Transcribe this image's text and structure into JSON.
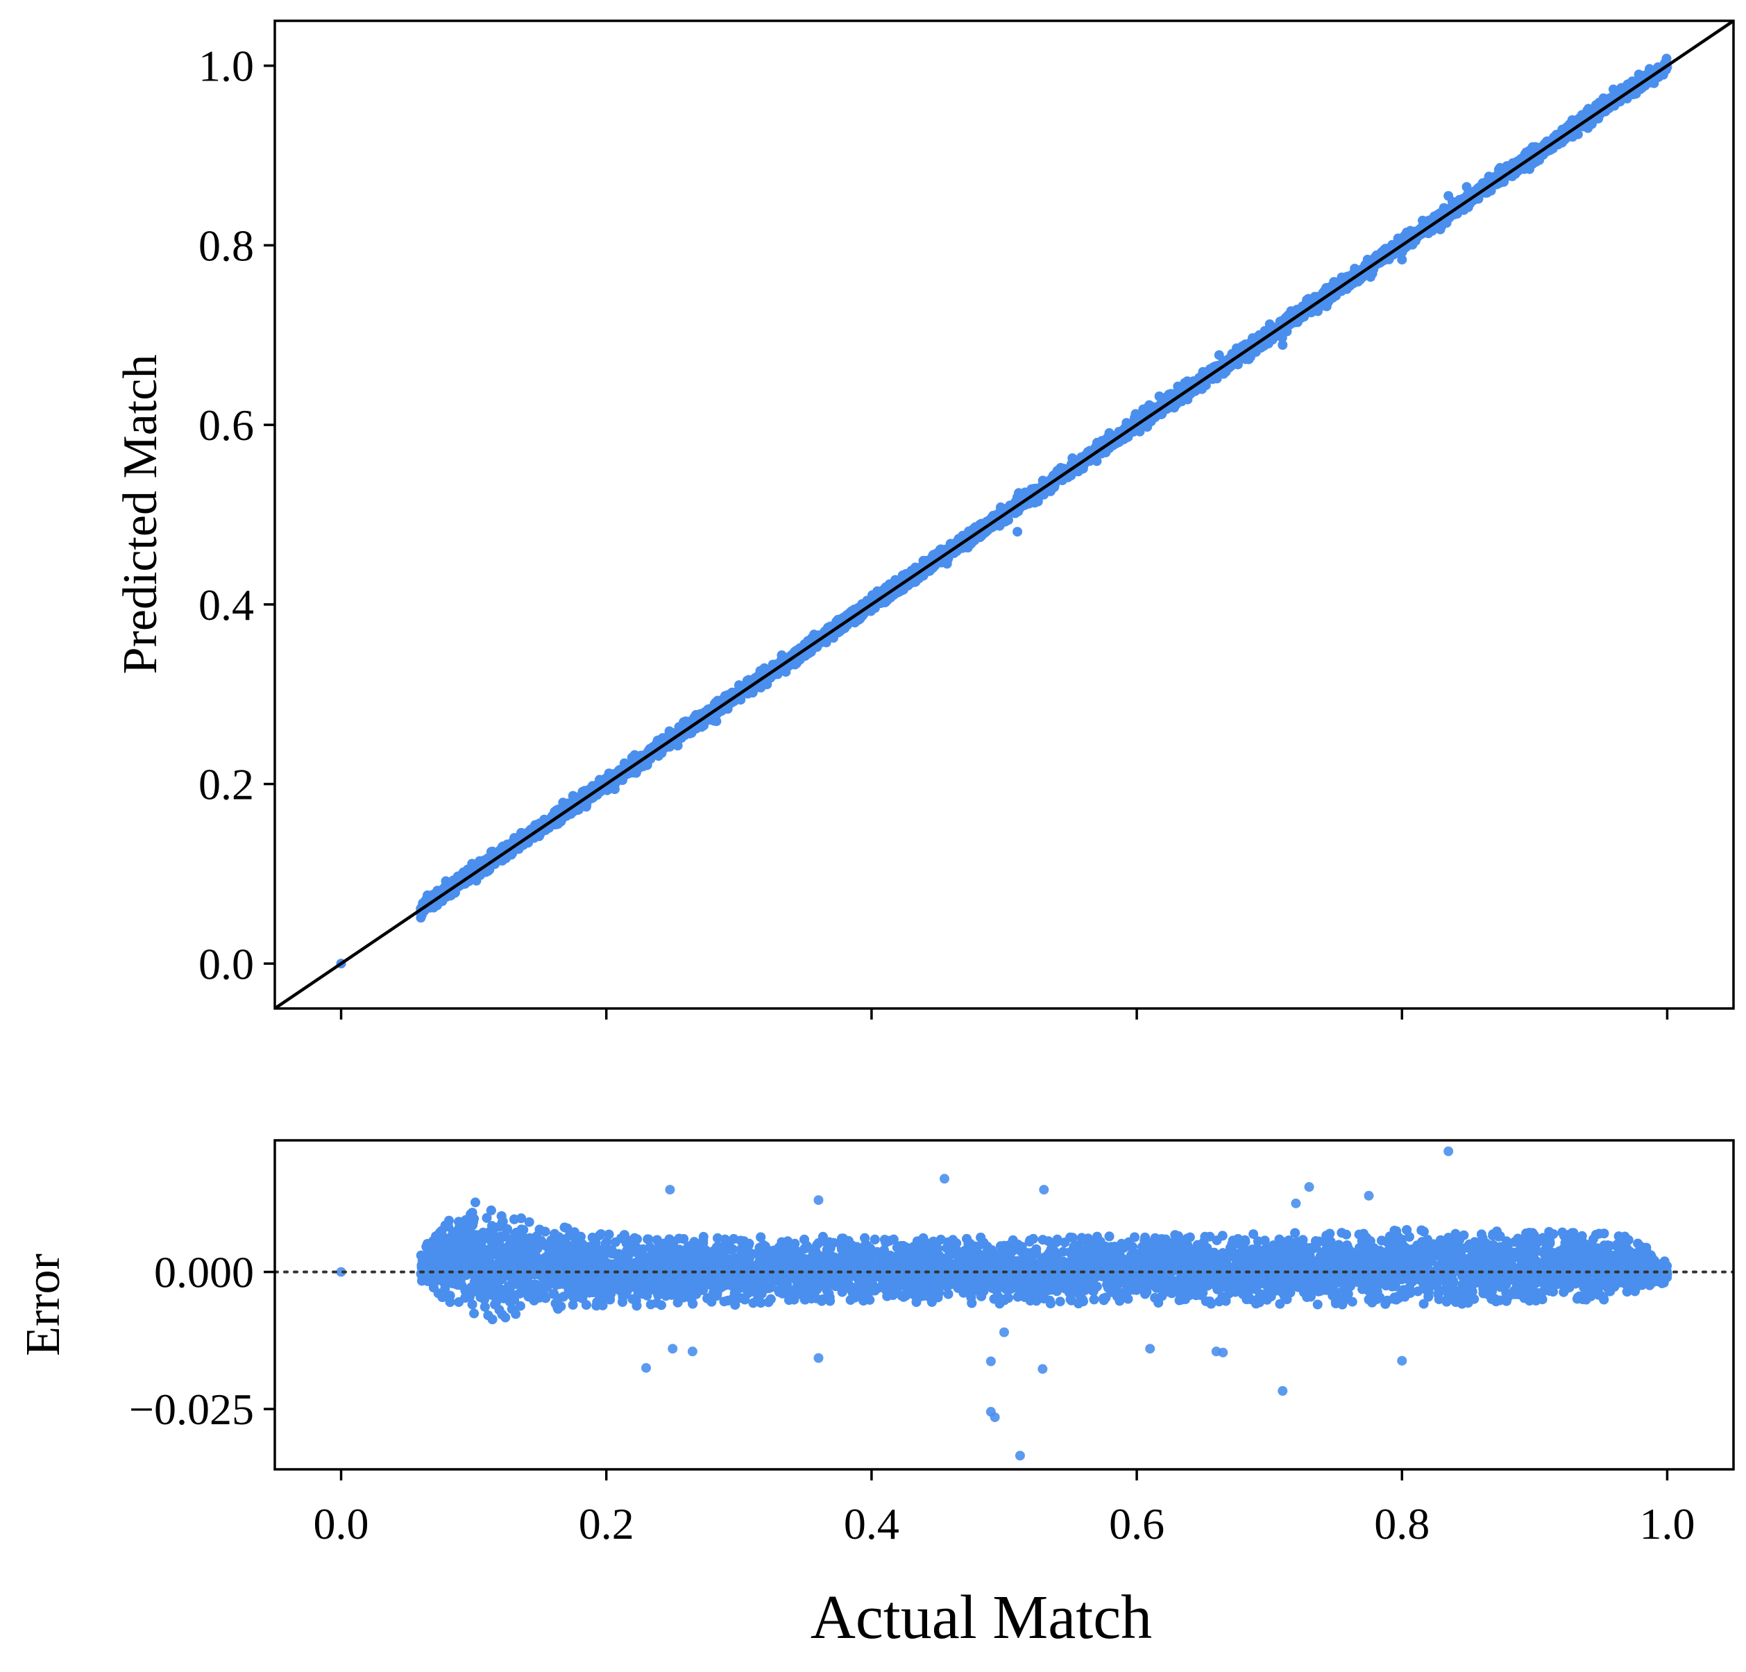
{
  "colors": {
    "points": "#4a8fed",
    "line": "#000000",
    "frame": "#000000",
    "background": "#ffffff"
  },
  "chart_data": [
    {
      "type": "scatter",
      "panel": "top",
      "xlabel": "",
      "ylabel": "Predicted Match",
      "xlim": [
        -0.05,
        1.05
      ],
      "ylim": [
        -0.05,
        1.05
      ],
      "xticks": [
        "0.0",
        "0.2",
        "0.4",
        "0.6",
        "0.8",
        "1.0"
      ],
      "xtick_values": [
        0,
        0.2,
        0.4,
        0.6,
        0.8,
        1.0
      ],
      "xtick_labels_shown": false,
      "yticks": [
        "0.0",
        "0.2",
        "0.4",
        "0.6",
        "0.8",
        "1.0"
      ],
      "ytick_values": [
        0,
        0.2,
        0.4,
        0.6,
        0.8,
        1.0
      ],
      "reference_line": {
        "x": [
          -0.05,
          1.05
        ],
        "y": [
          -0.05,
          1.05
        ],
        "style": "solid"
      },
      "point_cloud": {
        "x_range": [
          0.06,
          1.0
        ],
        "relation": "y ≈ x",
        "spread": 0.004
      },
      "highlight_points": [
        {
          "x": 0.0,
          "y": 0.0
        },
        {
          "x": 0.71,
          "y": 0.689
        },
        {
          "x": 0.8,
          "y": 0.784
        },
        {
          "x": 0.51,
          "y": 0.481
        },
        {
          "x": 0.835,
          "y": 0.855
        }
      ],
      "grid": false,
      "legend": "none"
    },
    {
      "type": "scatter",
      "panel": "bottom",
      "xlabel": "Actual Match",
      "ylabel": "Error",
      "xlim": [
        -0.05,
        1.05
      ],
      "ylim": [
        -0.036,
        0.024
      ],
      "xticks": [
        "0.0",
        "0.2",
        "0.4",
        "0.6",
        "0.8",
        "1.0"
      ],
      "xtick_values": [
        0,
        0.2,
        0.4,
        0.6,
        0.8,
        1.0
      ],
      "yticks": [
        "0.000",
        "−0.025"
      ],
      "ytick_values": [
        0.0,
        -0.025
      ],
      "reference_line": {
        "y": 0.0,
        "style": "dotted"
      },
      "band": [
        {
          "x": 0.06,
          "lo": -0.002,
          "hi": 0.004
        },
        {
          "x": 0.08,
          "lo": -0.006,
          "hi": 0.01
        },
        {
          "x": 0.1,
          "lo": -0.008,
          "hi": 0.013
        },
        {
          "x": 0.12,
          "lo": -0.009,
          "hi": 0.012
        },
        {
          "x": 0.15,
          "lo": -0.008,
          "hi": 0.009
        },
        {
          "x": 0.2,
          "lo": -0.0065,
          "hi": 0.007
        },
        {
          "x": 0.3,
          "lo": -0.006,
          "hi": 0.0068
        },
        {
          "x": 0.4,
          "lo": -0.0055,
          "hi": 0.0062
        },
        {
          "x": 0.5,
          "lo": -0.0058,
          "hi": 0.0065
        },
        {
          "x": 0.6,
          "lo": -0.0058,
          "hi": 0.0068
        },
        {
          "x": 0.7,
          "lo": -0.006,
          "hi": 0.007
        },
        {
          "x": 0.8,
          "lo": -0.0062,
          "hi": 0.0078
        },
        {
          "x": 0.9,
          "lo": -0.0055,
          "hi": 0.0075
        },
        {
          "x": 0.97,
          "lo": -0.005,
          "hi": 0.007
        },
        {
          "x": 1.0,
          "lo": -0.002,
          "hi": 0.002
        }
      ],
      "outliers": [
        {
          "x": 0.0,
          "y": 0.0
        },
        {
          "x": 0.835,
          "y": 0.022
        },
        {
          "x": 0.455,
          "y": 0.017
        },
        {
          "x": 0.248,
          "y": 0.015
        },
        {
          "x": 0.53,
          "y": 0.015
        },
        {
          "x": 0.73,
          "y": 0.0155
        },
        {
          "x": 0.72,
          "y": 0.0125
        },
        {
          "x": 0.36,
          "y": 0.0131
        },
        {
          "x": 0.775,
          "y": 0.0139
        },
        {
          "x": 0.23,
          "y": -0.0175
        },
        {
          "x": 0.49,
          "y": -0.0255
        },
        {
          "x": 0.493,
          "y": -0.0265
        },
        {
          "x": 0.512,
          "y": -0.0335
        },
        {
          "x": 0.529,
          "y": -0.0177
        },
        {
          "x": 0.71,
          "y": -0.0217
        },
        {
          "x": 0.8,
          "y": -0.0162
        },
        {
          "x": 0.49,
          "y": -0.0163
        },
        {
          "x": 0.36,
          "y": -0.0157
        },
        {
          "x": 0.665,
          "y": -0.0147
        },
        {
          "x": 0.66,
          "y": -0.0145
        },
        {
          "x": 0.25,
          "y": -0.014
        },
        {
          "x": 0.5,
          "y": -0.011
        },
        {
          "x": 0.265,
          "y": -0.0145
        },
        {
          "x": 0.61,
          "y": -0.014
        }
      ],
      "grid": false,
      "legend": "none"
    }
  ]
}
